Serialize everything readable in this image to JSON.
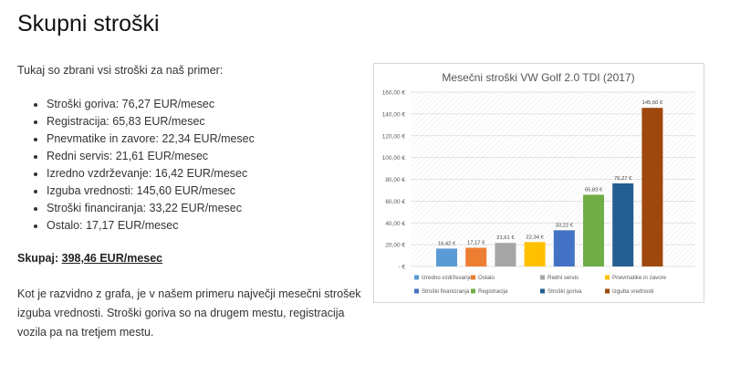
{
  "page": {
    "title": "Skupni stroški",
    "intro": "Tukaj so zbrani vsi stroški za naš primer:",
    "costs": [
      "Stroški goriva: 76,27 EUR/mesec",
      "Registracija: 65,83 EUR/mesec",
      "Pnevmatike in zavore: 22,34 EUR/mesec",
      "Redni servis: 21,61 EUR/mesec",
      "Izredno vzdrževanje: 16,42 EUR/mesec",
      "Izguba vrednosti: 145,60 EUR/mesec",
      "Stroški financiranja: 33,22 EUR/mesec",
      "Ostalo: 17,17 EUR/mesec"
    ],
    "total_label": "Skupaj:",
    "total_value": "398,46 EUR/mesec",
    "conclusion": "Kot je razvidno z grafa, je v našem primeru največji mesečni strošek izguba vrednosti. Stroški goriva so na drugem mestu, registracija vozila pa na tretjem mestu."
  },
  "chart_data": {
    "type": "bar",
    "title": "Mesečni stroški VW Golf 2.0 TDI (2017)",
    "xlabel": "",
    "ylabel": "",
    "ylim": [
      0,
      160
    ],
    "yticks": [
      0,
      20,
      40,
      60,
      80,
      100,
      120,
      140,
      160
    ],
    "ytick_labels": [
      "-   €",
      "20,00 €",
      "40,00 €",
      "60,00 €",
      "80,00 €",
      "100,00 €",
      "120,00 €",
      "140,00 €",
      "160,00 €"
    ],
    "grid": true,
    "legend_position": "bottom",
    "series": [
      {
        "name": "Izredno vzdrževanje",
        "value": 16.42,
        "label": "16,42 €",
        "color": "#5b9bd5"
      },
      {
        "name": "Ostalo",
        "value": 17.17,
        "label": "17,17 €",
        "color": "#ed7d31"
      },
      {
        "name": "Redni servis",
        "value": 21.61,
        "label": "21,61 €",
        "color": "#a5a5a5"
      },
      {
        "name": "Pnevmatike in zavore",
        "value": 22.34,
        "label": "22,34 €",
        "color": "#ffc000"
      },
      {
        "name": "Stroški financiranja",
        "value": 33.22,
        "label": "33,22 €",
        "color": "#4472c4"
      },
      {
        "name": "Registracija",
        "value": 65.83,
        "label": "65,83 €",
        "color": "#70ad47"
      },
      {
        "name": "Stroški goriva",
        "value": 76.27,
        "label": "76,27 €",
        "color": "#255e91"
      },
      {
        "name": "Izguba vrednosti",
        "value": 145.6,
        "label": "145,60 €",
        "color": "#9e480e"
      }
    ]
  }
}
